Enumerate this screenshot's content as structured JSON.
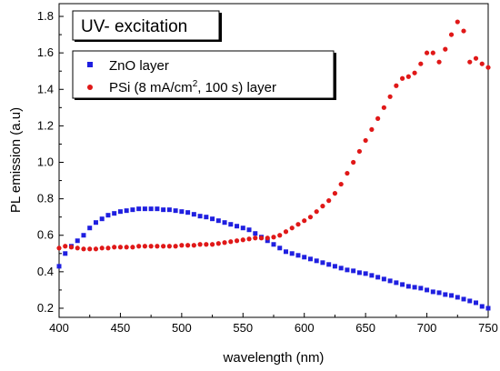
{
  "chart_data": {
    "type": "scatter",
    "xlabel": "wavelength (nm)",
    "ylabel": "PL emission (a.u)",
    "xlim": [
      400,
      750
    ],
    "ylim": [
      0.15,
      1.87
    ],
    "x_ticks": [
      400,
      450,
      500,
      550,
      600,
      650,
      700,
      750
    ],
    "y_ticks": [
      0.2,
      0.4,
      0.6,
      0.8,
      1.0,
      1.2,
      1.4,
      1.6,
      1.8
    ],
    "x_tick_labels": [
      "400",
      "450",
      "500",
      "550",
      "600",
      "650",
      "700",
      "750"
    ],
    "y_tick_labels": [
      "0.2",
      "0.4",
      "0.6",
      "0.8",
      "1.0",
      "1.2",
      "1.4",
      "1.6",
      "1.8"
    ],
    "grid": false,
    "legend_position": "top-left",
    "annotation": "UV- excitation",
    "series": [
      {
        "name": "ZnO layer",
        "legend_label": "ZnO layer",
        "color": "#1f1fe0",
        "marker": "square",
        "x": [
          400,
          405,
          410,
          415,
          420,
          425,
          430,
          435,
          440,
          445,
          450,
          455,
          460,
          465,
          470,
          475,
          480,
          485,
          490,
          495,
          500,
          505,
          510,
          515,
          520,
          525,
          530,
          535,
          540,
          545,
          550,
          555,
          560,
          565,
          570,
          575,
          580,
          585,
          590,
          595,
          600,
          605,
          610,
          615,
          620,
          625,
          630,
          635,
          640,
          645,
          650,
          655,
          660,
          665,
          670,
          675,
          680,
          685,
          690,
          695,
          700,
          705,
          710,
          715,
          720,
          725,
          730,
          735,
          740,
          745,
          750
        ],
        "y": [
          0.43,
          0.5,
          0.54,
          0.57,
          0.6,
          0.64,
          0.67,
          0.69,
          0.71,
          0.72,
          0.73,
          0.735,
          0.74,
          0.745,
          0.745,
          0.745,
          0.745,
          0.74,
          0.74,
          0.735,
          0.73,
          0.725,
          0.715,
          0.705,
          0.7,
          0.69,
          0.68,
          0.67,
          0.66,
          0.65,
          0.64,
          0.63,
          0.61,
          0.59,
          0.57,
          0.55,
          0.53,
          0.51,
          0.5,
          0.49,
          0.48,
          0.47,
          0.46,
          0.45,
          0.44,
          0.43,
          0.42,
          0.41,
          0.405,
          0.395,
          0.39,
          0.38,
          0.37,
          0.36,
          0.35,
          0.34,
          0.33,
          0.32,
          0.315,
          0.31,
          0.3,
          0.29,
          0.285,
          0.275,
          0.27,
          0.26,
          0.25,
          0.24,
          0.23,
          0.21,
          0.2
        ]
      },
      {
        "name": "PSi (8 mA/cm², 100 s) layer",
        "legend_label_main": "PSi (8 mA/cm",
        "legend_label_sup": "2",
        "legend_label_end": ", 100 s) layer",
        "color": "#e01818",
        "marker": "circle",
        "x": [
          400,
          405,
          410,
          415,
          420,
          425,
          430,
          435,
          440,
          445,
          450,
          455,
          460,
          465,
          470,
          475,
          480,
          485,
          490,
          495,
          500,
          505,
          510,
          515,
          520,
          525,
          530,
          535,
          540,
          545,
          550,
          555,
          560,
          565,
          570,
          575,
          580,
          585,
          590,
          595,
          600,
          605,
          610,
          615,
          620,
          625,
          630,
          635,
          640,
          645,
          650,
          655,
          660,
          665,
          670,
          675,
          680,
          685,
          690,
          695,
          700,
          705,
          710,
          715,
          720,
          725,
          730,
          735,
          740,
          745,
          750
        ],
        "y": [
          0.53,
          0.54,
          0.535,
          0.53,
          0.525,
          0.525,
          0.525,
          0.53,
          0.53,
          0.535,
          0.535,
          0.535,
          0.535,
          0.54,
          0.54,
          0.54,
          0.54,
          0.54,
          0.54,
          0.54,
          0.545,
          0.545,
          0.545,
          0.55,
          0.55,
          0.55,
          0.555,
          0.56,
          0.565,
          0.57,
          0.575,
          0.58,
          0.585,
          0.585,
          0.585,
          0.59,
          0.6,
          0.62,
          0.64,
          0.66,
          0.68,
          0.7,
          0.73,
          0.76,
          0.79,
          0.83,
          0.88,
          0.94,
          1.0,
          1.06,
          1.12,
          1.18,
          1.24,
          1.3,
          1.36,
          1.42,
          1.46,
          1.47,
          1.49,
          1.54,
          1.6,
          1.6,
          1.55,
          1.62,
          1.7,
          1.77,
          1.72,
          1.55,
          1.57,
          1.54,
          1.52
        ]
      }
    ]
  }
}
